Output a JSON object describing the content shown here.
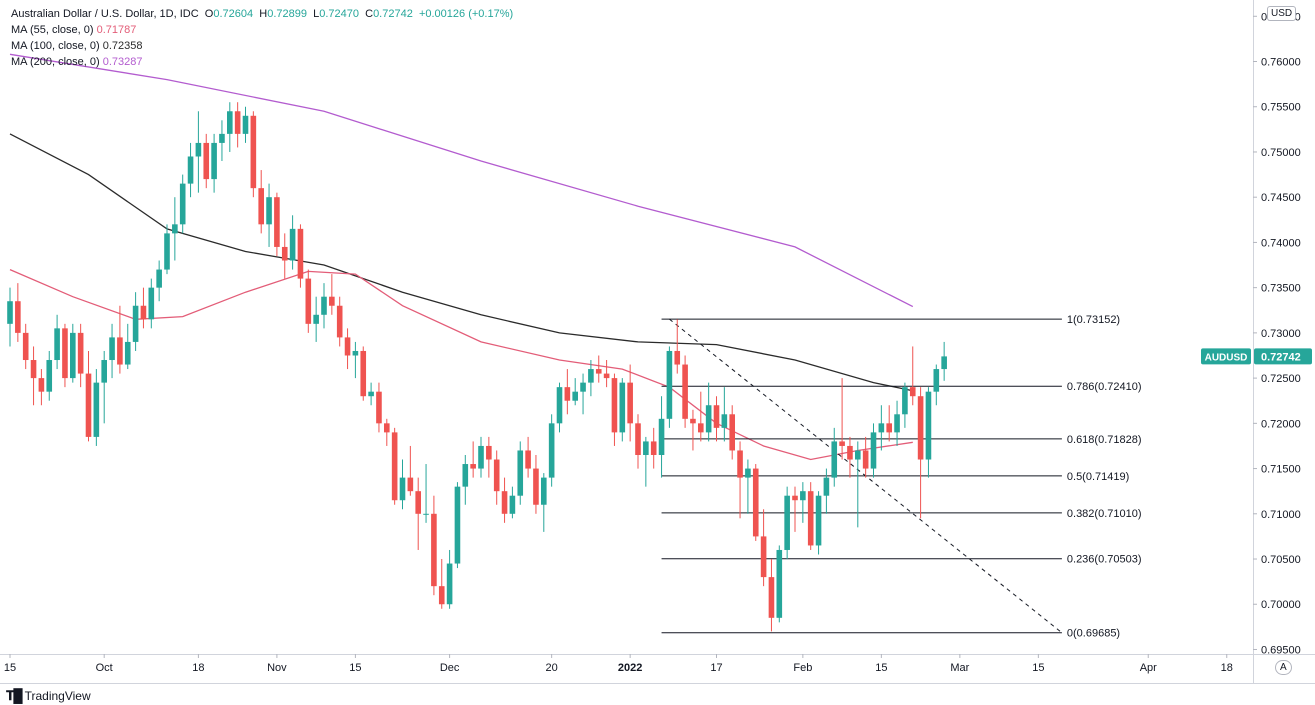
{
  "legend": {
    "title": "Australian Dollar / U.S. Dollar, 1D, IDC",
    "o_label": "O",
    "o_value": "0.72604",
    "h_label": "H",
    "h_value": "0.72899",
    "l_label": "L",
    "l_value": "0.72470",
    "c_label": "C",
    "c_value": "0.72742",
    "change": "+0.00126 (+0.17%)",
    "ma55_label": "MA (55, close, 0)",
    "ma55_value": "0.71787",
    "ma100_label": "MA (100, close, 0)",
    "ma100_value": "0.72358",
    "ma200_label": "MA (200, close, 0)",
    "ma200_value": "0.73287"
  },
  "currency_badge": "USD",
  "auto_badge": "A",
  "symbol_badge": "AUDUSD",
  "price_badge": "0.72742",
  "branding": "TradingView",
  "colors": {
    "up": "#26a69a",
    "down": "#ef5350",
    "ma55": "#e35d78",
    "ma100": "#2b2b2b",
    "ma200": "#b35ccf",
    "fib": "#131722",
    "badge": "#26a69a"
  },
  "chart_data": {
    "type": "candlestick",
    "ylim": [
      0.6945,
      0.7668
    ],
    "y_ticks": [
      "0.76500",
      "0.76000",
      "0.75500",
      "0.75000",
      "0.74500",
      "0.74000",
      "0.73500",
      "0.73000",
      "0.72500",
      "0.72000",
      "0.71500",
      "0.71000",
      "0.70500",
      "0.70000",
      "0.69500"
    ],
    "x_ticks": [
      {
        "label": "15",
        "bar": 0
      },
      {
        "label": "Oct",
        "bar": 12
      },
      {
        "label": "18",
        "bar": 24
      },
      {
        "label": "Nov",
        "bar": 34
      },
      {
        "label": "15",
        "bar": 44
      },
      {
        "label": "Dec",
        "bar": 56
      },
      {
        "label": "20",
        "bar": 69
      },
      {
        "label": "2022",
        "bar": 79
      },
      {
        "label": "17",
        "bar": 90
      },
      {
        "label": "Feb",
        "bar": 101
      },
      {
        "label": "15",
        "bar": 111
      },
      {
        "label": "Mar",
        "bar": 121
      },
      {
        "label": "15",
        "bar": 131
      },
      {
        "label": "Apr",
        "bar": 145
      },
      {
        "label": "18",
        "bar": 155
      }
    ],
    "candles": [
      [
        0.731,
        0.735,
        0.7285,
        0.7335
      ],
      [
        0.7335,
        0.7355,
        0.729,
        0.73
      ],
      [
        0.73,
        0.731,
        0.726,
        0.727
      ],
      [
        0.727,
        0.7285,
        0.722,
        0.725
      ],
      [
        0.725,
        0.726,
        0.722,
        0.7235
      ],
      [
        0.7235,
        0.728,
        0.7225,
        0.727
      ],
      [
        0.727,
        0.732,
        0.726,
        0.7305
      ],
      [
        0.7305,
        0.731,
        0.724,
        0.725
      ],
      [
        0.725,
        0.731,
        0.7245,
        0.73
      ],
      [
        0.73,
        0.731,
        0.724,
        0.7255
      ],
      [
        0.7255,
        0.728,
        0.718,
        0.7185
      ],
      [
        0.7185,
        0.726,
        0.7175,
        0.7245
      ],
      [
        0.7245,
        0.728,
        0.72,
        0.727
      ],
      [
        0.727,
        0.731,
        0.725,
        0.7295
      ],
      [
        0.7295,
        0.733,
        0.7255,
        0.7265
      ],
      [
        0.7265,
        0.731,
        0.726,
        0.729
      ],
      [
        0.729,
        0.7345,
        0.728,
        0.733
      ],
      [
        0.733,
        0.735,
        0.7305,
        0.7315
      ],
      [
        0.7315,
        0.736,
        0.7305,
        0.735
      ],
      [
        0.735,
        0.738,
        0.7335,
        0.737
      ],
      [
        0.737,
        0.742,
        0.7365,
        0.741
      ],
      [
        0.741,
        0.745,
        0.738,
        0.742
      ],
      [
        0.742,
        0.7475,
        0.741,
        0.7465
      ],
      [
        0.7465,
        0.751,
        0.745,
        0.7495
      ],
      [
        0.7495,
        0.7545,
        0.7455,
        0.751
      ],
      [
        0.751,
        0.752,
        0.746,
        0.747
      ],
      [
        0.747,
        0.752,
        0.7455,
        0.751
      ],
      [
        0.751,
        0.7535,
        0.749,
        0.752
      ],
      [
        0.752,
        0.7555,
        0.75,
        0.7545
      ],
      [
        0.7545,
        0.7555,
        0.7505,
        0.752
      ],
      [
        0.752,
        0.755,
        0.751,
        0.754
      ],
      [
        0.754,
        0.7545,
        0.745,
        0.746
      ],
      [
        0.746,
        0.748,
        0.741,
        0.742
      ],
      [
        0.742,
        0.7465,
        0.7395,
        0.745
      ],
      [
        0.745,
        0.7455,
        0.7385,
        0.7395
      ],
      [
        0.7395,
        0.741,
        0.736,
        0.738
      ],
      [
        0.738,
        0.743,
        0.737,
        0.7415
      ],
      [
        0.7415,
        0.742,
        0.735,
        0.736
      ],
      [
        0.736,
        0.737,
        0.73,
        0.731
      ],
      [
        0.731,
        0.734,
        0.729,
        0.732
      ],
      [
        0.732,
        0.7355,
        0.7305,
        0.734
      ],
      [
        0.734,
        0.7365,
        0.732,
        0.733
      ],
      [
        0.733,
        0.734,
        0.7285,
        0.7295
      ],
      [
        0.7295,
        0.7305,
        0.726,
        0.7275
      ],
      [
        0.7275,
        0.729,
        0.725,
        0.728
      ],
      [
        0.728,
        0.7285,
        0.7225,
        0.723
      ],
      [
        0.723,
        0.7245,
        0.722,
        0.7235
      ],
      [
        0.7235,
        0.7245,
        0.719,
        0.72
      ],
      [
        0.72,
        0.7205,
        0.7175,
        0.719
      ],
      [
        0.719,
        0.7195,
        0.711,
        0.7115
      ],
      [
        0.7115,
        0.716,
        0.7105,
        0.714
      ],
      [
        0.714,
        0.7175,
        0.712,
        0.7125
      ],
      [
        0.7125,
        0.714,
        0.706,
        0.71
      ],
      [
        0.71,
        0.7155,
        0.709,
        0.71
      ],
      [
        0.71,
        0.712,
        0.701,
        0.702
      ],
      [
        0.702,
        0.705,
        0.6995,
        0.7
      ],
      [
        0.7,
        0.706,
        0.6995,
        0.7045
      ],
      [
        0.7045,
        0.7135,
        0.704,
        0.713
      ],
      [
        0.713,
        0.7165,
        0.711,
        0.7155
      ],
      [
        0.7155,
        0.718,
        0.714,
        0.715
      ],
      [
        0.715,
        0.7185,
        0.714,
        0.7175
      ],
      [
        0.7175,
        0.7185,
        0.714,
        0.716
      ],
      [
        0.716,
        0.717,
        0.711,
        0.7125
      ],
      [
        0.7125,
        0.714,
        0.709,
        0.71
      ],
      [
        0.71,
        0.713,
        0.7095,
        0.712
      ],
      [
        0.712,
        0.718,
        0.711,
        0.717
      ],
      [
        0.717,
        0.7185,
        0.714,
        0.715
      ],
      [
        0.715,
        0.7165,
        0.71,
        0.711
      ],
      [
        0.711,
        0.7145,
        0.708,
        0.714
      ],
      [
        0.714,
        0.721,
        0.713,
        0.72
      ],
      [
        0.72,
        0.7245,
        0.719,
        0.724
      ],
      [
        0.724,
        0.726,
        0.721,
        0.7225
      ],
      [
        0.7225,
        0.725,
        0.722,
        0.7235
      ],
      [
        0.7235,
        0.7255,
        0.721,
        0.7245
      ],
      [
        0.7245,
        0.727,
        0.723,
        0.726
      ],
      [
        0.726,
        0.7275,
        0.7245,
        0.7255
      ],
      [
        0.7255,
        0.727,
        0.724,
        0.725
      ],
      [
        0.725,
        0.7255,
        0.7175,
        0.719
      ],
      [
        0.719,
        0.725,
        0.718,
        0.7245
      ],
      [
        0.7245,
        0.7265,
        0.718,
        0.72
      ],
      [
        0.72,
        0.721,
        0.715,
        0.7165
      ],
      [
        0.7165,
        0.7185,
        0.713,
        0.718
      ],
      [
        0.718,
        0.7195,
        0.715,
        0.7165
      ],
      [
        0.7165,
        0.723,
        0.714,
        0.7205
      ],
      [
        0.7205,
        0.7285,
        0.7195,
        0.728
      ],
      [
        0.728,
        0.7315,
        0.7255,
        0.7265
      ],
      [
        0.7265,
        0.7275,
        0.7195,
        0.7205
      ],
      [
        0.7205,
        0.7215,
        0.717,
        0.72
      ],
      [
        0.72,
        0.7235,
        0.718,
        0.719
      ],
      [
        0.719,
        0.7245,
        0.718,
        0.722
      ],
      [
        0.722,
        0.723,
        0.718,
        0.7195
      ],
      [
        0.7195,
        0.724,
        0.718,
        0.721
      ],
      [
        0.721,
        0.722,
        0.716,
        0.717
      ],
      [
        0.717,
        0.718,
        0.7095,
        0.714
      ],
      [
        0.714,
        0.716,
        0.71,
        0.715
      ],
      [
        0.715,
        0.7155,
        0.707,
        0.7075
      ],
      [
        0.7075,
        0.7105,
        0.702,
        0.703
      ],
      [
        0.703,
        0.705,
        0.697,
        0.6985
      ],
      [
        0.6985,
        0.7065,
        0.698,
        0.706
      ],
      [
        0.706,
        0.713,
        0.705,
        0.712
      ],
      [
        0.712,
        0.713,
        0.708,
        0.7115
      ],
      [
        0.7115,
        0.7135,
        0.709,
        0.7125
      ],
      [
        0.7125,
        0.7135,
        0.706,
        0.7065
      ],
      [
        0.7065,
        0.7125,
        0.7055,
        0.712
      ],
      [
        0.712,
        0.715,
        0.71,
        0.714
      ],
      [
        0.714,
        0.7195,
        0.713,
        0.718
      ],
      [
        0.718,
        0.725,
        0.716,
        0.7175
      ],
      [
        0.7175,
        0.7185,
        0.714,
        0.716
      ],
      [
        0.716,
        0.718,
        0.7085,
        0.717
      ],
      [
        0.717,
        0.7185,
        0.714,
        0.715
      ],
      [
        0.715,
        0.72,
        0.714,
        0.719
      ],
      [
        0.719,
        0.722,
        0.717,
        0.72
      ],
      [
        0.72,
        0.722,
        0.718,
        0.719
      ],
      [
        0.719,
        0.7225,
        0.7175,
        0.721
      ],
      [
        0.721,
        0.7245,
        0.7195,
        0.724
      ],
      [
        0.724,
        0.7285,
        0.722,
        0.723
      ],
      [
        0.723,
        0.724,
        0.7095,
        0.716
      ],
      [
        0.716,
        0.724,
        0.714,
        0.7235
      ],
      [
        0.7235,
        0.7265,
        0.722,
        0.726
      ],
      [
        0.726,
        0.729,
        0.7247,
        0.7274
      ]
    ],
    "ma200": [
      [
        0,
        0.7608
      ],
      [
        20,
        0.758
      ],
      [
        40,
        0.7545
      ],
      [
        60,
        0.749
      ],
      [
        80,
        0.744
      ],
      [
        100,
        0.7395
      ],
      [
        115,
        0.7329
      ]
    ],
    "ma100": [
      [
        0,
        0.752
      ],
      [
        10,
        0.7475
      ],
      [
        20,
        0.7415
      ],
      [
        30,
        0.739
      ],
      [
        40,
        0.7375
      ],
      [
        50,
        0.7345
      ],
      [
        60,
        0.732
      ],
      [
        70,
        0.73
      ],
      [
        80,
        0.729
      ],
      [
        90,
        0.7287
      ],
      [
        100,
        0.727
      ],
      [
        110,
        0.7245
      ],
      [
        115,
        0.7236
      ]
    ],
    "ma55": [
      [
        0,
        0.737
      ],
      [
        8,
        0.734
      ],
      [
        16,
        0.7315
      ],
      [
        22,
        0.7318
      ],
      [
        30,
        0.7345
      ],
      [
        38,
        0.7368
      ],
      [
        44,
        0.7365
      ],
      [
        50,
        0.733
      ],
      [
        60,
        0.729
      ],
      [
        70,
        0.727
      ],
      [
        78,
        0.726
      ],
      [
        84,
        0.724
      ],
      [
        90,
        0.72
      ],
      [
        96,
        0.7175
      ],
      [
        102,
        0.716
      ],
      [
        108,
        0.717
      ],
      [
        115,
        0.7179
      ]
    ],
    "fib_start_bar": 83,
    "fib_end_bar": 134,
    "fib_levels": [
      {
        "level": "1",
        "price": 0.73152
      },
      {
        "level": "0.786",
        "price": 0.7241
      },
      {
        "level": "0.618",
        "price": 0.71828
      },
      {
        "level": "0.5",
        "price": 0.71419
      },
      {
        "level": "0.382",
        "price": 0.7101
      },
      {
        "level": "0.236",
        "price": 0.70503
      },
      {
        "level": "0",
        "price": 0.69685
      }
    ],
    "fib_trend": {
      "from": [
        84,
        0.73152
      ],
      "to": [
        134,
        0.69685
      ]
    }
  }
}
